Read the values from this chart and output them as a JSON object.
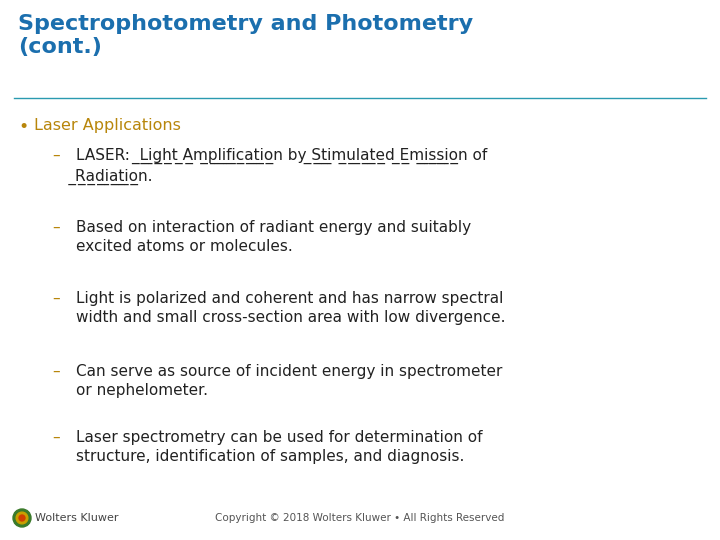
{
  "title_line1": "Spectrophotometry and Photometry",
  "title_line2": "(cont.)",
  "title_color": "#1B6FAE",
  "title_fontsize": 16,
  "separator_color": "#2A9AB0",
  "bg_color": "#FFFFFF",
  "bullet_color": "#B8860B",
  "bullet_text": "Laser Applications",
  "bullet_fontsize": 11.5,
  "sub_dash_color": "#B8860B",
  "sub_text_color": "#222222",
  "sub_fontsize": 11,
  "sub_entries": [
    "LASER: ̲L̲i̲g̲h̲t ̲A̲m̲p̲l̲i̲f̲i̲c̲a̲t̲i̲o̲n by ̲S̲t̲i̲m̲u̲l̲a̲t̲e̲d ̲E̲m̲i̲s̲s̲i̲o̲n of\nRadiation.",
    "Based on interaction of radiant energy and suitably\nexcited atoms or molecules.",
    "Light is polarized and coherent and has narrow spectral\nwidth and small cross-section area with low divergence.",
    "Can serve as source of incident energy in spectrometer\nor nephelometer.",
    "Laser spectrometry can be used for determination of\nstructure, identification of samples, and diagnosis."
  ],
  "copyright_text": "Copyright © 2018 Wolters Kluwer • All Rights Reserved",
  "copyright_color": "#555555",
  "copyright_fontsize": 7.5,
  "footer_logo_text": "Wolters Kluwer",
  "footer_logo_fontsize": 8,
  "footer_logo_color": "#444444",
  "logo_outer_color": "#3a7a2a",
  "logo_mid_color": "#c8a000",
  "logo_inner_color": "#d04000"
}
